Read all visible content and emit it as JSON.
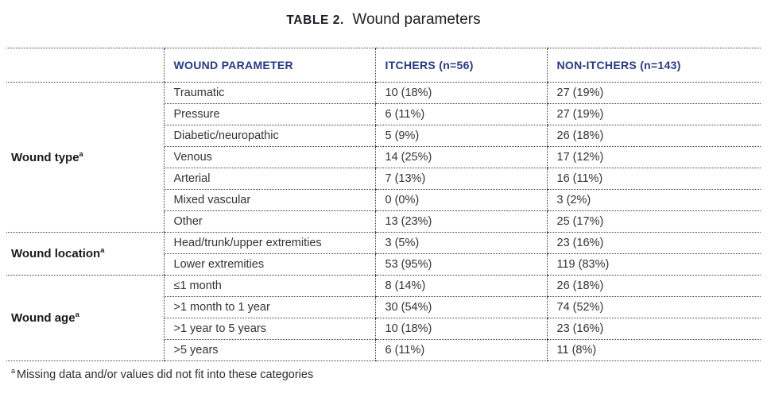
{
  "title": {
    "label": "TABLE 2.",
    "text": "Wound parameters"
  },
  "colors": {
    "header_navy": "#283a80",
    "body_text": "#333333",
    "group_label": "#1a1a1a",
    "border_dotted": "#3c3c3c"
  },
  "table": {
    "headers": {
      "group": "",
      "parameter": "WOUND PARAMETER",
      "itchers": "ITCHERS (n=56)",
      "non_itchers": "NON-ITCHERS (n=143)"
    },
    "groups": [
      {
        "label": "Wound type",
        "sup": "a",
        "rows": [
          {
            "parameter": "Traumatic",
            "itchers": "10 (18%)",
            "non_itchers": "27 (19%)"
          },
          {
            "parameter": "Pressure",
            "itchers": "6 (11%)",
            "non_itchers": "27 (19%)"
          },
          {
            "parameter": "Diabetic/neuropathic",
            "itchers": "5 (9%)",
            "non_itchers": "26 (18%)"
          },
          {
            "parameter": "Venous",
            "itchers": "14 (25%)",
            "non_itchers": "17 (12%)"
          },
          {
            "parameter": "Arterial",
            "itchers": "7 (13%)",
            "non_itchers": "16 (11%)"
          },
          {
            "parameter": "Mixed vascular",
            "itchers": "0 (0%)",
            "non_itchers": "3 (2%)"
          },
          {
            "parameter": "Other",
            "itchers": "13 (23%)",
            "non_itchers": "25 (17%)"
          }
        ]
      },
      {
        "label": "Wound location",
        "sup": "a",
        "rows": [
          {
            "parameter": "Head/trunk/upper extremities",
            "itchers": "3 (5%)",
            "non_itchers": "23 (16%)"
          },
          {
            "parameter": "Lower extremities",
            "itchers": "53 (95%)",
            "non_itchers": "119 (83%)"
          }
        ]
      },
      {
        "label": "Wound age",
        "sup": "a",
        "rows": [
          {
            "parameter": "≤1 month",
            "itchers": "8 (14%)",
            "non_itchers": "26 (18%)"
          },
          {
            "parameter": ">1 month to 1 year",
            "itchers": "30 (54%)",
            "non_itchers": "74 (52%)"
          },
          {
            "parameter": ">1 year to 5 years",
            "itchers": "10 (18%)",
            "non_itchers": "23 (16%)"
          },
          {
            "parameter": ">5 years",
            "itchers": "6 (11%)",
            "non_itchers": "11 (8%)"
          }
        ]
      }
    ]
  },
  "footnote": {
    "sup": "a",
    "text": "Missing data and/or values did not fit into these categories"
  }
}
